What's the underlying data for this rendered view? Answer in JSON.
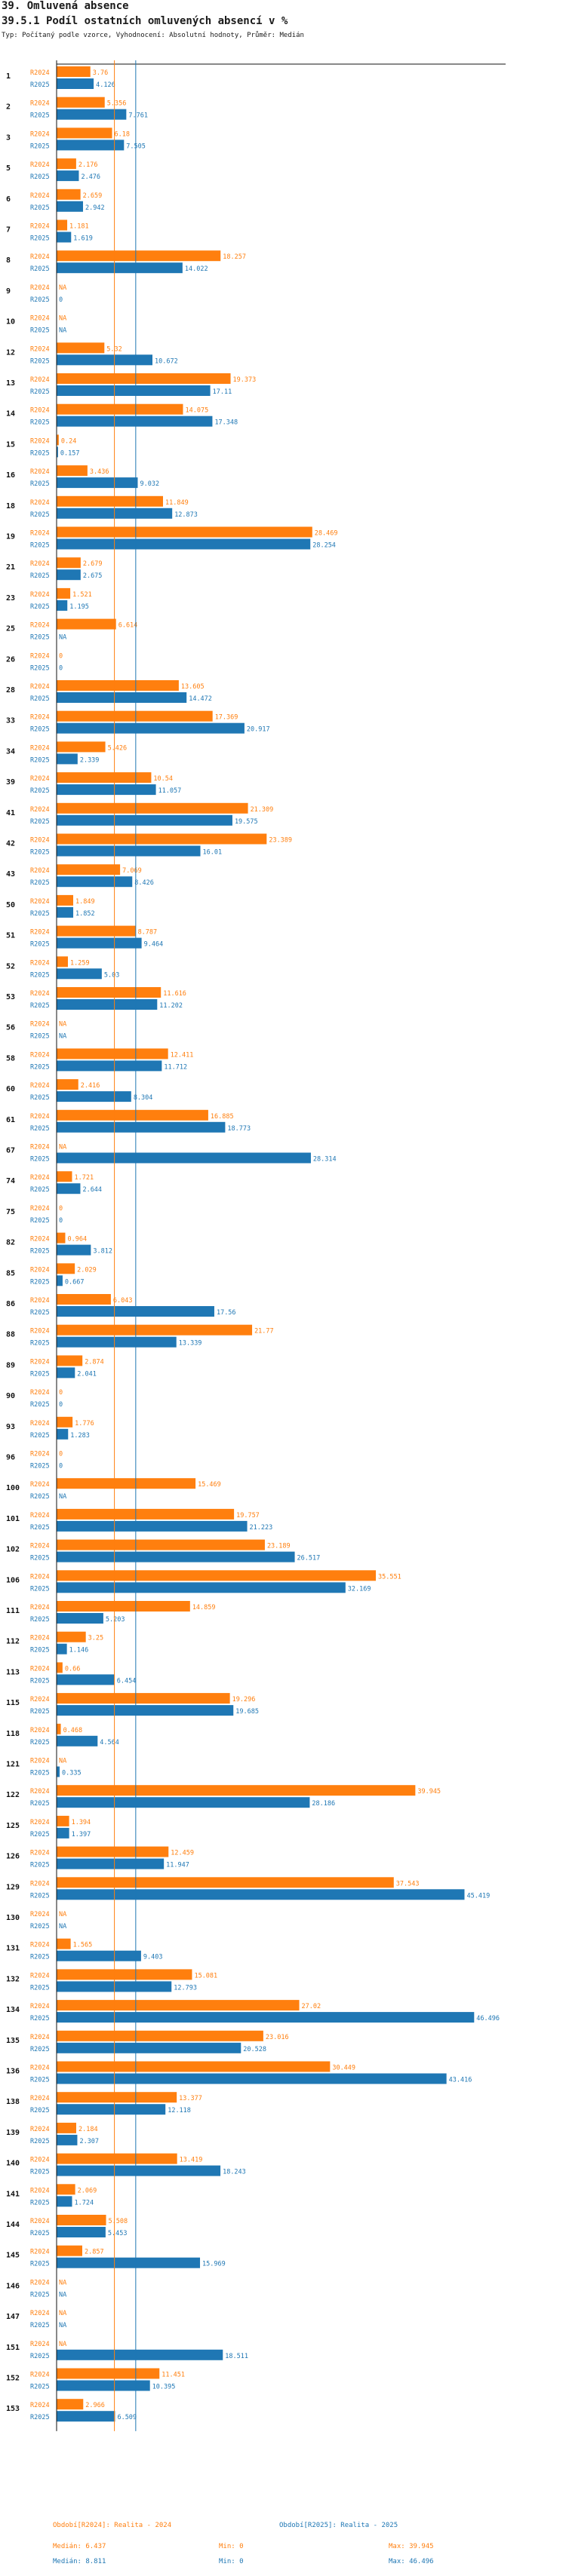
{
  "header": {
    "title": "39. Omluvená absence",
    "subtitle": "39.5.1 Podíl ostatních omluvených absencí v %",
    "meta": "Typ: Počítaný podle vzorce, Vyhodnocení: Absolutní hodnoty, Průměr: Medián"
  },
  "colors": {
    "r2024": "#ff7f0e",
    "r2025": "#1f77b4"
  },
  "chart_data": {
    "type": "bar",
    "orientation": "horizontal",
    "series_labels": [
      "R2024",
      "R2025"
    ],
    "missing_label": "NA",
    "xlim": [
      0,
      50
    ],
    "categories": [
      "1",
      "2",
      "3",
      "5",
      "6",
      "7",
      "8",
      "9",
      "10",
      "12",
      "13",
      "14",
      "15",
      "16",
      "18",
      "19",
      "21",
      "23",
      "25",
      "26",
      "28",
      "33",
      "34",
      "39",
      "41",
      "42",
      "43",
      "50",
      "51",
      "52",
      "53",
      "56",
      "58",
      "60",
      "61",
      "67",
      "74",
      "75",
      "82",
      "85",
      "86",
      "88",
      "89",
      "90",
      "93",
      "96",
      "100",
      "101",
      "102",
      "106",
      "111",
      "112",
      "113",
      "115",
      "118",
      "121",
      "122",
      "125",
      "126",
      "129",
      "130",
      "131",
      "132",
      "134",
      "135",
      "136",
      "138",
      "139",
      "140",
      "141",
      "144",
      "145",
      "146",
      "147",
      "151",
      "152",
      "153"
    ],
    "series": [
      {
        "name": "R2024",
        "label_color": "#ff7f0e",
        "values": [
          "3.76",
          "5.356",
          "6.18",
          "2.176",
          "2.659",
          "1.181",
          "18.257",
          "NA",
          "NA",
          "5.32",
          "19.373",
          "14.075",
          "0.24",
          "3.436",
          "11.849",
          "28.469",
          "2.679",
          "1.521",
          "6.614",
          "0",
          "13.605",
          "17.369",
          "5.426",
          "10.54",
          "21.309",
          "23.389",
          "7.069",
          "1.849",
          "8.787",
          "1.259",
          "11.616",
          "NA",
          "12.411",
          "2.416",
          "16.885",
          "NA",
          "1.721",
          "0",
          "0.964",
          "2.029",
          "6.043",
          "21.77",
          "2.874",
          "0",
          "1.776",
          "0",
          "15.469",
          "19.757",
          "23.189",
          "35.551",
          "14.859",
          "3.25",
          "0.66",
          "19.296",
          "0.468",
          "NA",
          "39.945",
          "1.394",
          "12.459",
          "37.543",
          "NA",
          "1.565",
          "15.081",
          "27.02",
          "23.016",
          "30.449",
          "13.377",
          "2.184",
          "13.419",
          "2.069",
          "5.508",
          "2.857",
          "NA",
          "NA",
          "NA",
          "11.451",
          "2.966"
        ]
      },
      {
        "name": "R2025",
        "label_color": "#1f77b4",
        "values": [
          "4.126",
          "7.761",
          "7.505",
          "2.476",
          "2.942",
          "1.619",
          "14.022",
          "0",
          "NA",
          "10.672",
          "17.11",
          "17.348",
          "0.157",
          "9.032",
          "12.873",
          "28.254",
          "2.675",
          "1.195",
          "NA",
          "0",
          "14.472",
          "20.917",
          "2.339",
          "11.057",
          "19.575",
          "16.01",
          "8.426",
          "1.852",
          "9.464",
          "5.03",
          "11.202",
          "NA",
          "11.712",
          "8.304",
          "18.773",
          "28.314",
          "2.644",
          "0",
          "3.812",
          "0.667",
          "17.56",
          "13.339",
          "2.041",
          "0",
          "1.283",
          "0",
          "NA",
          "21.223",
          "26.517",
          "32.169",
          "5.203",
          "1.146",
          "6.454",
          "19.685",
          "4.564",
          "0.335",
          "28.186",
          "1.397",
          "11.947",
          "45.419",
          "NA",
          "9.403",
          "12.793",
          "46.496",
          "20.528",
          "43.416",
          "12.118",
          "2.307",
          "18.243",
          "1.724",
          "5.453",
          "15.969",
          "NA",
          "NA",
          "18.511",
          "10.395",
          "6.509"
        ]
      }
    ]
  },
  "legend": {
    "r2024": {
      "name": "Období[R2024]: Realita - 2024",
      "median": "Medián: 6.437",
      "min": "Min: 0",
      "max": "Max: 39.945"
    },
    "r2025": {
      "name": "Období[R2025]: Realita - 2025",
      "median": "Medián: 8.811",
      "min": "Min: 0",
      "max": "Max: 46.496"
    }
  }
}
